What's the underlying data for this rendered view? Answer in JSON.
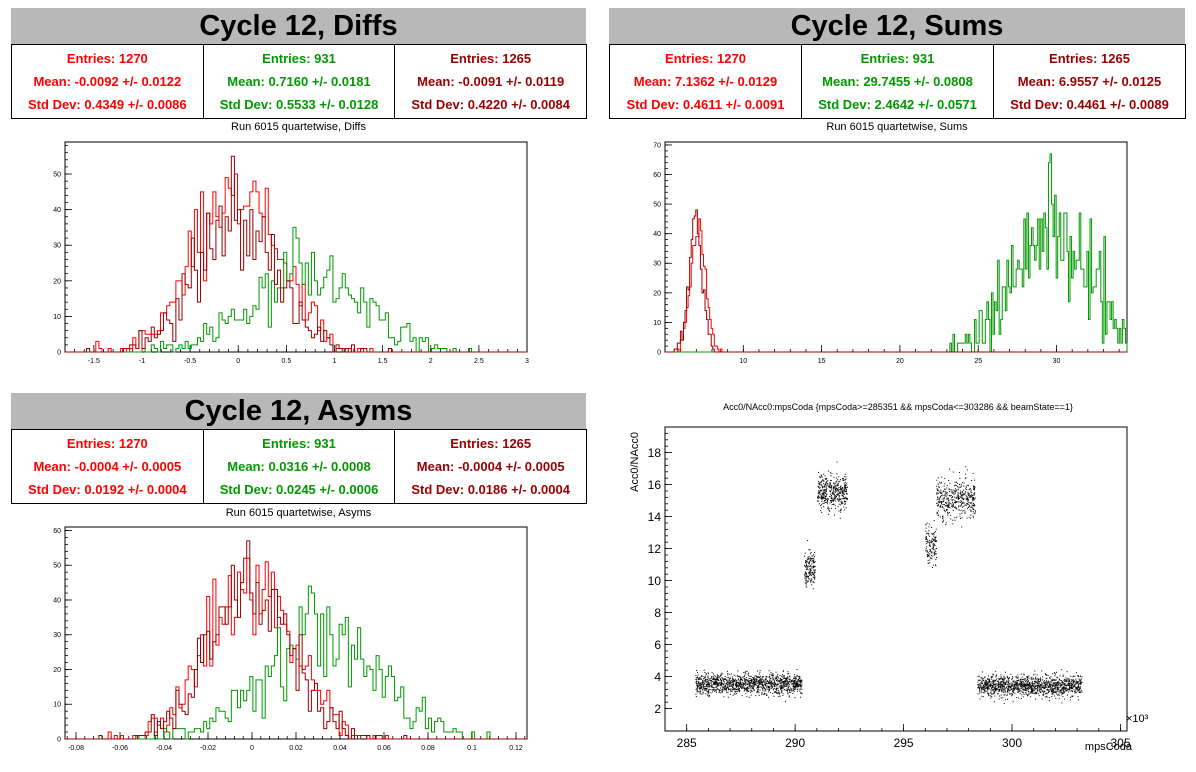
{
  "colors": {
    "series1": "#ff0000",
    "series2": "#009900",
    "series3": "#990000",
    "scatter": "#000000"
  },
  "panels": {
    "diffs": {
      "title": "Cycle 12, Diffs",
      "subtitle": "Run 6015 quartetwise, Diffs",
      "stats": [
        {
          "entries": "Entries: 1270",
          "mean": "Mean: -0.0092 +/- 0.0122",
          "std": "Std Dev: 0.4349 +/- 0.0086"
        },
        {
          "entries": "Entries: 931",
          "mean": "Mean: 0.7160 +/- 0.0181",
          "std": "Std Dev: 0.5533 +/- 0.0128"
        },
        {
          "entries": "Entries: 1265",
          "mean": "Mean: -0.0091 +/- 0.0119",
          "std": "Std Dev: 0.4220 +/- 0.0084"
        }
      ]
    },
    "sums": {
      "title": "Cycle 12, Sums",
      "subtitle": "Run 6015 quartetwise, Sums",
      "stats": [
        {
          "entries": "Entries: 1270",
          "mean": "Mean: 7.1362 +/- 0.0129",
          "std": "Std Dev: 0.4611 +/- 0.0091"
        },
        {
          "entries": "Entries: 931",
          "mean": "Mean: 29.7455 +/- 0.0808",
          "std": "Std Dev: 2.4642 +/- 0.0571"
        },
        {
          "entries": "Entries: 1265",
          "mean": "Mean: 6.9557 +/- 0.0125",
          "std": "Std Dev: 0.4461 +/- 0.0089"
        }
      ]
    },
    "asyms": {
      "title": "Cycle 12, Asyms",
      "subtitle": "Run 6015 quartetwise, Asyms",
      "stats": [
        {
          "entries": "Entries: 1270",
          "mean": "Mean: -0.0004 +/- 0.0005",
          "std": "Std Dev: 0.0192 +/- 0.0004"
        },
        {
          "entries": "Entries: 931",
          "mean": "Mean: 0.0316 +/- 0.0008",
          "std": "Std Dev: 0.0245 +/- 0.0006"
        },
        {
          "entries": "Entries: 1265",
          "mean": "Mean: -0.0004 +/- 0.0005",
          "std": "Std Dev: 0.0186 +/- 0.0004"
        }
      ]
    },
    "scatter": {
      "title": "Acc0/NAcc0:mpsCoda {mpsCoda>=285351 && mpsCoda<=303286 && beamState==1}",
      "ylabel": "Acc0/NAcc0",
      "xlabel": "mpsCoda",
      "xexp": "×10³"
    }
  },
  "chart_data": [
    {
      "type": "histogram",
      "name": "diffs",
      "xlim": [
        -1.8,
        3.0
      ],
      "ylim": [
        0,
        59
      ],
      "xticks": [
        -1.5,
        -1,
        -0.5,
        0,
        0.5,
        1,
        1.5,
        2,
        2.5,
        3
      ],
      "xtick_labels": [
        "-1.5",
        "-1",
        "-0.5",
        "0",
        "0.5",
        "1",
        "1.5",
        "2",
        "2.5",
        "3"
      ],
      "yticks": [
        0,
        10,
        20,
        30,
        40,
        50
      ],
      "series": [
        {
          "color": "#ff0000",
          "entries": 1270,
          "mean": -0.0092,
          "std": 0.4349,
          "peak": 50
        },
        {
          "color": "#009900",
          "entries": 931,
          "mean": 0.716,
          "std": 0.5533,
          "peak": 35
        },
        {
          "color": "#990000",
          "entries": 1265,
          "mean": -0.0091,
          "std": 0.422,
          "peak": 55
        }
      ]
    },
    {
      "type": "histogram",
      "name": "sums",
      "xlim": [
        5,
        34.5
      ],
      "ylim": [
        0,
        71
      ],
      "xticks": [
        10,
        15,
        20,
        25,
        30
      ],
      "xtick_labels": [
        "10",
        "15",
        "20",
        "25",
        "30"
      ],
      "yticks": [
        0,
        10,
        20,
        30,
        40,
        50,
        60,
        70
      ],
      "series": [
        {
          "color": "#ff0000",
          "entries": 1270,
          "mean": 7.1362,
          "std": 0.4611,
          "peak": 45
        },
        {
          "color": "#009900",
          "entries": 931,
          "mean": 29.7455,
          "std": 2.4642,
          "peak": 67
        },
        {
          "color": "#990000",
          "entries": 1265,
          "mean": 6.9557,
          "std": 0.4461,
          "peak": 48
        }
      ]
    },
    {
      "type": "histogram",
      "name": "asyms",
      "xlim": [
        -0.085,
        0.125
      ],
      "ylim": [
        0,
        61
      ],
      "xticks": [
        -0.08,
        -0.06,
        -0.04,
        -0.02,
        0,
        0.02,
        0.04,
        0.06,
        0.08,
        0.1,
        0.12
      ],
      "xtick_labels": [
        "-0.08",
        "-0.06",
        "-0.04",
        "-0.02",
        "0",
        "0.02",
        "0.04",
        "0.06",
        "0.08",
        "0.1",
        "0.12"
      ],
      "yticks": [
        0,
        10,
        20,
        30,
        40,
        50,
        60
      ],
      "series": [
        {
          "color": "#ff0000",
          "entries": 1270,
          "mean": -0.0004,
          "std": 0.0192,
          "peak": 52
        },
        {
          "color": "#009900",
          "entries": 931,
          "mean": 0.0316,
          "std": 0.0245,
          "peak": 44
        },
        {
          "color": "#990000",
          "entries": 1265,
          "mean": -0.0004,
          "std": 0.0186,
          "peak": 57
        }
      ]
    },
    {
      "type": "scatter",
      "name": "scatter",
      "xlim": [
        284,
        305.3
      ],
      "ylim": [
        0.6,
        19.6
      ],
      "xticks": [
        285,
        290,
        295,
        300,
        305
      ],
      "xtick_labels": [
        "285",
        "290",
        "295",
        "300",
        "305"
      ],
      "yticks": [
        2,
        4,
        6,
        8,
        10,
        12,
        14,
        16,
        18
      ],
      "ytick_labels": [
        "2",
        "4",
        "6",
        "8",
        "10",
        "12",
        "14",
        "16",
        "18"
      ],
      "clusters": [
        {
          "x": [
            285.4,
            290.3
          ],
          "y_center": 3.55,
          "y_spread": 0.55,
          "count": 1300
        },
        {
          "x": [
            290.4,
            290.9
          ],
          "y_center": 10.8,
          "y_spread": 0.9,
          "count": 160
        },
        {
          "x": [
            291.0,
            292.4
          ],
          "y_center": 15.6,
          "y_spread": 0.9,
          "count": 420
        },
        {
          "x": [
            296.0,
            296.5
          ],
          "y_center": 12.3,
          "y_spread": 1.0,
          "count": 130
        },
        {
          "x": [
            296.5,
            298.3
          ],
          "y_center": 15.1,
          "y_spread": 1.0,
          "count": 420
        },
        {
          "x": [
            298.4,
            303.2
          ],
          "y_center": 3.45,
          "y_spread": 0.55,
          "count": 1300
        }
      ]
    }
  ]
}
